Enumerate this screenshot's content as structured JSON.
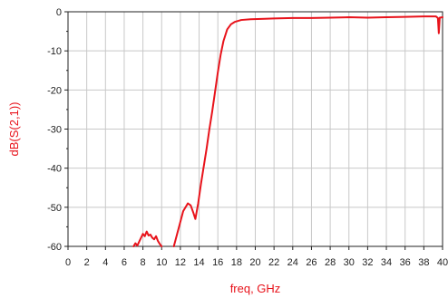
{
  "chart_data": {
    "type": "line",
    "title": "",
    "xlabel": "freq, GHz",
    "ylabel": "dB(S(2,1))",
    "xlim": [
      0,
      40
    ],
    "ylim": [
      -60,
      0
    ],
    "xticks": [
      "0",
      "2",
      "4",
      "6",
      "8",
      "10",
      "12",
      "14",
      "16",
      "18",
      "20",
      "22",
      "24",
      "26",
      "28",
      "30",
      "32",
      "34",
      "36",
      "38",
      "40"
    ],
    "yticks": [
      "0",
      "-10",
      "-20",
      "-30",
      "-40",
      "-50",
      "-60"
    ],
    "grid": true,
    "colors": {
      "series": "#e8131b",
      "axis_label": "#e8131b",
      "grid": "#c8c8c8"
    },
    "series": [
      {
        "segments": [
          [
            [
              7.0,
              -60
            ],
            [
              7.2,
              -59.2
            ],
            [
              7.4,
              -59.8
            ],
            [
              7.6,
              -58.8
            ],
            [
              7.8,
              -57.8
            ],
            [
              8.0,
              -56.8
            ],
            [
              8.2,
              -57.4
            ],
            [
              8.4,
              -56.2
            ],
            [
              8.6,
              -57.2
            ],
            [
              8.8,
              -57.0
            ],
            [
              9.0,
              -57.8
            ],
            [
              9.2,
              -58.2
            ],
            [
              9.4,
              -57.4
            ],
            [
              9.6,
              -58.6
            ],
            [
              9.8,
              -59.4
            ],
            [
              10.0,
              -60
            ]
          ],
          [
            [
              11.3,
              -60
            ],
            [
              11.8,
              -55.5
            ],
            [
              12.3,
              -51.0
            ],
            [
              12.8,
              -49.0
            ],
            [
              13.1,
              -49.5
            ],
            [
              13.4,
              -51.5
            ],
            [
              13.6,
              -53.0
            ],
            [
              13.9,
              -49.0
            ],
            [
              14.2,
              -44.0
            ],
            [
              14.5,
              -39.5
            ],
            [
              14.8,
              -35.0
            ],
            [
              15.1,
              -30.0
            ],
            [
              15.4,
              -25.5
            ],
            [
              15.7,
              -20.5
            ],
            [
              16.0,
              -15.5
            ],
            [
              16.3,
              -11.0
            ],
            [
              16.6,
              -7.5
            ],
            [
              17.0,
              -4.5
            ],
            [
              17.4,
              -3.2
            ],
            [
              17.8,
              -2.6
            ],
            [
              18.5,
              -2.1
            ],
            [
              19.5,
              -1.9
            ],
            [
              21,
              -1.8
            ],
            [
              22,
              -1.7
            ],
            [
              24,
              -1.6
            ],
            [
              26,
              -1.6
            ],
            [
              28,
              -1.5
            ],
            [
              30,
              -1.4
            ],
            [
              32,
              -1.5
            ],
            [
              34,
              -1.4
            ],
            [
              36,
              -1.3
            ],
            [
              38,
              -1.2
            ],
            [
              39.3,
              -1.2
            ],
            [
              39.5,
              -1.6
            ],
            [
              39.6,
              -5.5
            ],
            [
              39.7,
              -1.5
            ],
            [
              40,
              -1.4
            ]
          ]
        ]
      }
    ]
  }
}
